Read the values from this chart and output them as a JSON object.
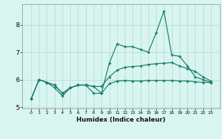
{
  "title": "",
  "xlabel": "Humidex (Indice chaleur)",
  "x": [
    0,
    1,
    2,
    3,
    4,
    5,
    6,
    7,
    8,
    9,
    10,
    11,
    12,
    13,
    14,
    15,
    16,
    17,
    18,
    19,
    20,
    21,
    22,
    23
  ],
  "line1": [
    5.3,
    6.0,
    5.9,
    5.7,
    5.4,
    5.7,
    5.8,
    5.8,
    5.5,
    5.5,
    5.85,
    5.95,
    5.97,
    5.95,
    5.95,
    5.97,
    5.97,
    5.97,
    5.97,
    5.95,
    5.95,
    5.92,
    5.9,
    5.9
  ],
  "line2": [
    5.3,
    6.0,
    5.9,
    5.8,
    5.5,
    5.7,
    5.8,
    5.8,
    5.75,
    5.75,
    6.1,
    6.35,
    6.45,
    6.48,
    6.5,
    6.55,
    6.58,
    6.6,
    6.62,
    6.5,
    6.4,
    6.3,
    6.1,
    5.95
  ],
  "line3": [
    5.3,
    6.0,
    5.9,
    5.8,
    5.5,
    5.7,
    5.8,
    5.8,
    5.75,
    5.5,
    6.6,
    7.3,
    7.2,
    7.2,
    7.1,
    7.0,
    7.7,
    8.5,
    6.9,
    6.85,
    6.5,
    6.1,
    6.0,
    5.9
  ],
  "line_color": "#1a7a6e",
  "bg_color": "#d8f5f0",
  "grid_color": "#afd8d0",
  "ylim": [
    4.95,
    8.75
  ],
  "yticks": [
    5,
    6,
    7,
    8
  ],
  "xticks": [
    0,
    1,
    2,
    3,
    4,
    5,
    6,
    7,
    8,
    9,
    10,
    11,
    12,
    13,
    14,
    15,
    16,
    17,
    18,
    19,
    20,
    21,
    22,
    23
  ],
  "marker": "+",
  "lw": 0.9,
  "ms": 3.0
}
